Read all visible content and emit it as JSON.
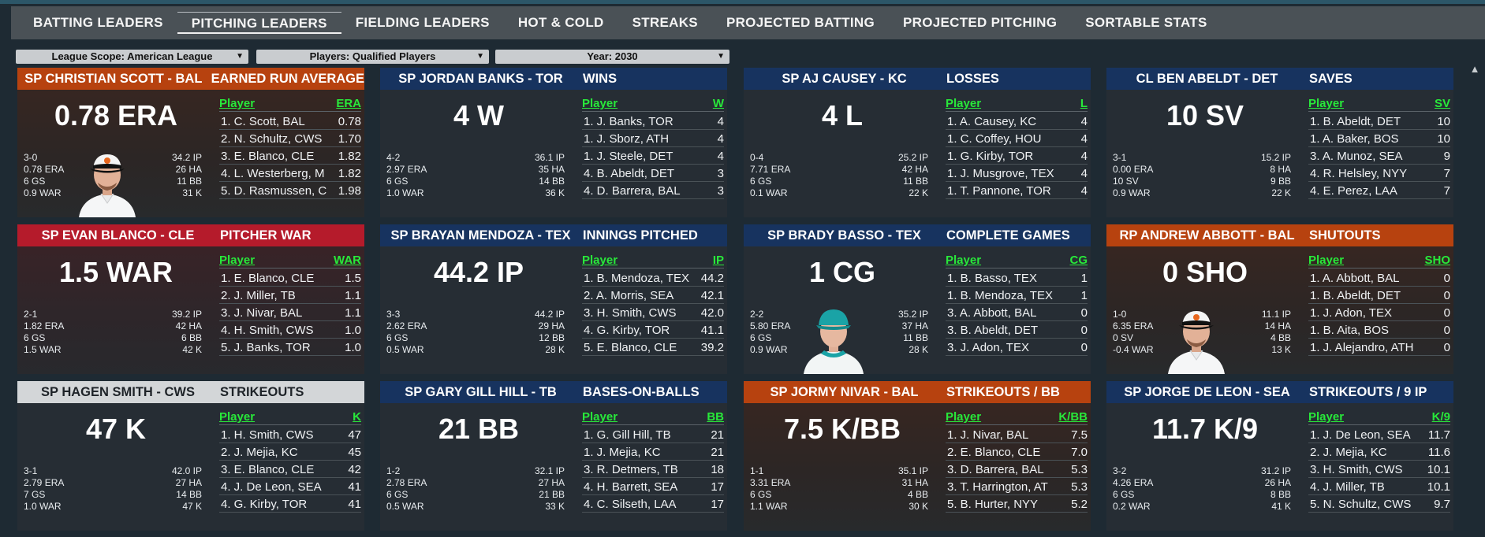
{
  "tabs": [
    "BATTING LEADERS",
    "PITCHING LEADERS",
    "FIELDING LEADERS",
    "HOT & COLD",
    "STREAKS",
    "PROJECTED BATTING",
    "PROJECTED PITCHING",
    "SORTABLE STATS"
  ],
  "active_tab": "PITCHING LEADERS",
  "filters": {
    "league": "League Scope: American League",
    "players": "Players: Qualified Players",
    "year": "Year: 2030"
  },
  "colors": {
    "accent_green": "#28e83a",
    "blue": "#17335f",
    "orange": "#b7420f",
    "red": "#b51b2b",
    "white": "#d3d6d8"
  },
  "cards": [
    {
      "player": "SP CHRISTIAN SCOTT - BAL",
      "category": "EARNED RUN AVERAGE",
      "big": "0.78 ERA",
      "theme": "orange",
      "photo": "orioles",
      "stats_left": [
        "3-0",
        "0.78 ERA",
        "6 GS",
        "0.9 WAR"
      ],
      "stats_right": [
        "34.2 IP",
        "26 HA",
        "11 BB",
        "31 K"
      ],
      "col_player": "Player",
      "col_value": "ERA",
      "rows": [
        [
          "1. C. Scott, BAL",
          "0.78"
        ],
        [
          "2. N. Schultz, CWS",
          "1.70"
        ],
        [
          "3. E. Blanco, CLE",
          "1.82"
        ],
        [
          "4. L. Westerberg, M",
          "1.82"
        ],
        [
          "5. D. Rasmussen, C",
          "1.98"
        ]
      ]
    },
    {
      "player": "SP JORDAN BANKS - TOR",
      "category": "WINS",
      "big": "4 W",
      "theme": "blue",
      "photo": "",
      "stats_left": [
        "4-2",
        "2.97 ERA",
        "6 GS",
        "1.0 WAR"
      ],
      "stats_right": [
        "36.1 IP",
        "35 HA",
        "14 BB",
        "36 K"
      ],
      "col_player": "Player",
      "col_value": "W",
      "rows": [
        [
          "1. J. Banks, TOR",
          "4"
        ],
        [
          "1. J. Sborz, ATH",
          "4"
        ],
        [
          "1. J. Steele, DET",
          "4"
        ],
        [
          "4. B. Abeldt, DET",
          "3"
        ],
        [
          "4. D. Barrera, BAL",
          "3"
        ]
      ]
    },
    {
      "player": "SP AJ CAUSEY - KC",
      "category": "LOSSES",
      "big": "4 L",
      "theme": "blue",
      "photo": "",
      "stats_left": [
        "0-4",
        "7.71 ERA",
        "6 GS",
        "0.1 WAR"
      ],
      "stats_right": [
        "25.2 IP",
        "42 HA",
        "11 BB",
        "22 K"
      ],
      "col_player": "Player",
      "col_value": "L",
      "rows": [
        [
          "1. A. Causey, KC",
          "4"
        ],
        [
          "1. C. Coffey, HOU",
          "4"
        ],
        [
          "1. G. Kirby, TOR",
          "4"
        ],
        [
          "1. J. Musgrove, TEX",
          "4"
        ],
        [
          "1. T. Pannone, TOR",
          "4"
        ]
      ]
    },
    {
      "player": "CL BEN ABELDT - DET",
      "category": "SAVES",
      "big": "10 SV",
      "theme": "blue",
      "photo": "",
      "stats_left": [
        "3-1",
        "0.00 ERA",
        "10 SV",
        "0.9 WAR"
      ],
      "stats_right": [
        "15.2 IP",
        "8 HA",
        "9 BB",
        "22 K"
      ],
      "col_player": "Player",
      "col_value": "SV",
      "rows": [
        [
          "1. B. Abeldt, DET",
          "10"
        ],
        [
          "1. A. Baker, BOS",
          "10"
        ],
        [
          "3. A. Munoz, SEA",
          "9"
        ],
        [
          "4. R. Helsley, NYY",
          "7"
        ],
        [
          "4. E. Perez, LAA",
          "7"
        ]
      ]
    },
    {
      "player": "SP EVAN BLANCO - CLE",
      "category": "PITCHER WAR",
      "big": "1.5 WAR",
      "theme": "red",
      "photo": "",
      "stats_left": [
        "2-1",
        "1.82 ERA",
        "6 GS",
        "1.5 WAR"
      ],
      "stats_right": [
        "39.2 IP",
        "42 HA",
        "6 BB",
        "42 K"
      ],
      "col_player": "Player",
      "col_value": "WAR",
      "rows": [
        [
          "1. E. Blanco, CLE",
          "1.5"
        ],
        [
          "2. J. Miller, TB",
          "1.1"
        ],
        [
          "3. J. Nivar, BAL",
          "1.1"
        ],
        [
          "4. H. Smith, CWS",
          "1.0"
        ],
        [
          "5. J. Banks, TOR",
          "1.0"
        ]
      ]
    },
    {
      "player": "SP BRAYAN MENDOZA - TEX",
      "category": "INNINGS PITCHED",
      "big": "44.2 IP",
      "theme": "blue",
      "photo": "",
      "stats_left": [
        "3-3",
        "2.62 ERA",
        "6 GS",
        "0.5 WAR"
      ],
      "stats_right": [
        "44.2 IP",
        "29 HA",
        "12 BB",
        "28 K"
      ],
      "col_player": "Player",
      "col_value": "IP",
      "rows": [
        [
          "1. B. Mendoza, TEX",
          "44.2"
        ],
        [
          "2. A. Morris, SEA",
          "42.1"
        ],
        [
          "3. H. Smith, CWS",
          "42.0"
        ],
        [
          "4. G. Kirby, TOR",
          "41.1"
        ],
        [
          "5. E. Blanco, CLE",
          "39.2"
        ]
      ]
    },
    {
      "player": "SP BRADY BASSO - TEX",
      "category": "COMPLETE GAMES",
      "big": "1 CG",
      "theme": "blue",
      "photo": "teal",
      "stats_left": [
        "2-2",
        "5.80 ERA",
        "6 GS",
        "0.9 WAR"
      ],
      "stats_right": [
        "35.2 IP",
        "37 HA",
        "11 BB",
        "28 K"
      ],
      "col_player": "Player",
      "col_value": "CG",
      "rows": [
        [
          "1. B. Basso, TEX",
          "1"
        ],
        [
          "1. B. Mendoza, TEX",
          "1"
        ],
        [
          "3. A. Abbott, BAL",
          "0"
        ],
        [
          "3. B. Abeldt, DET",
          "0"
        ],
        [
          "3. J. Adon, TEX",
          "0"
        ]
      ]
    },
    {
      "player": "RP ANDREW ABBOTT - BAL",
      "category": "SHUTOUTS",
      "big": "0 SHO",
      "theme": "orange",
      "photo": "orioles",
      "stats_left": [
        "1-0",
        "6.35 ERA",
        "0 SV",
        "-0.4 WAR"
      ],
      "stats_right": [
        "11.1 IP",
        "14 HA",
        "4 BB",
        "13 K"
      ],
      "col_player": "Player",
      "col_value": "SHO",
      "rows": [
        [
          "1. A. Abbott, BAL",
          "0"
        ],
        [
          "1. B. Abeldt, DET",
          "0"
        ],
        [
          "1. J. Adon, TEX",
          "0"
        ],
        [
          "1. B. Aita, BOS",
          "0"
        ],
        [
          "1. J. Alejandro, ATH",
          "0"
        ]
      ]
    },
    {
      "player": "SP HAGEN SMITH - CWS",
      "category": "STRIKEOUTS",
      "big": "47 K",
      "theme": "white",
      "photo": "",
      "stats_left": [
        "3-1",
        "2.79 ERA",
        "7 GS",
        "1.0 WAR"
      ],
      "stats_right": [
        "42.0 IP",
        "27 HA",
        "14 BB",
        "47 K"
      ],
      "col_player": "Player",
      "col_value": "K",
      "rows": [
        [
          "1. H. Smith, CWS",
          "47"
        ],
        [
          "2. J. Mejia, KC",
          "45"
        ],
        [
          "3. E. Blanco, CLE",
          "42"
        ],
        [
          "4. J. De Leon, SEA",
          "41"
        ],
        [
          "4. G. Kirby, TOR",
          "41"
        ]
      ]
    },
    {
      "player": "SP GARY GILL HILL - TB",
      "category": "BASES-ON-BALLS",
      "big": "21 BB",
      "theme": "blue",
      "photo": "",
      "stats_left": [
        "1-2",
        "2.78 ERA",
        "6 GS",
        "0.5 WAR"
      ],
      "stats_right": [
        "32.1 IP",
        "27 HA",
        "21 BB",
        "33 K"
      ],
      "col_player": "Player",
      "col_value": "BB",
      "rows": [
        [
          "1. G. Gill Hill, TB",
          "21"
        ],
        [
          "1. J. Mejia, KC",
          "21"
        ],
        [
          "3. R. Detmers, TB",
          "18"
        ],
        [
          "4. H. Barrett, SEA",
          "17"
        ],
        [
          "4. C. Silseth, LAA",
          "17"
        ]
      ]
    },
    {
      "player": "SP JORMY NIVAR - BAL",
      "category": "STRIKEOUTS / BB",
      "big": "7.5 K/BB",
      "theme": "orange",
      "photo": "",
      "stats_left": [
        "1-1",
        "3.31 ERA",
        "6 GS",
        "1.1 WAR"
      ],
      "stats_right": [
        "35.1 IP",
        "31 HA",
        "4 BB",
        "30 K"
      ],
      "col_player": "Player",
      "col_value": "K/BB",
      "rows": [
        [
          "1. J. Nivar, BAL",
          "7.5"
        ],
        [
          "2. E. Blanco, CLE",
          "7.0"
        ],
        [
          "3. D. Barrera, BAL",
          "5.3"
        ],
        [
          "3. T. Harrington, AT",
          "5.3"
        ],
        [
          "5. B. Hurter, NYY",
          "5.2"
        ]
      ]
    },
    {
      "player": "SP JORGE DE LEON - SEA",
      "category": "STRIKEOUTS / 9 IP",
      "big": "11.7 K/9",
      "theme": "blue",
      "photo": "",
      "stats_left": [
        "3-2",
        "4.26 ERA",
        "6 GS",
        "0.2 WAR"
      ],
      "stats_right": [
        "31.2 IP",
        "26 HA",
        "8 BB",
        "41 K"
      ],
      "col_player": "Player",
      "col_value": "K/9",
      "rows": [
        [
          "1. J. De Leon, SEA",
          "11.7"
        ],
        [
          "2. J. Mejia, KC",
          "11.6"
        ],
        [
          "3. H. Smith, CWS",
          "10.1"
        ],
        [
          "4. J. Miller, TB",
          "10.1"
        ],
        [
          "5. N. Schultz, CWS",
          "9.7"
        ]
      ]
    }
  ]
}
